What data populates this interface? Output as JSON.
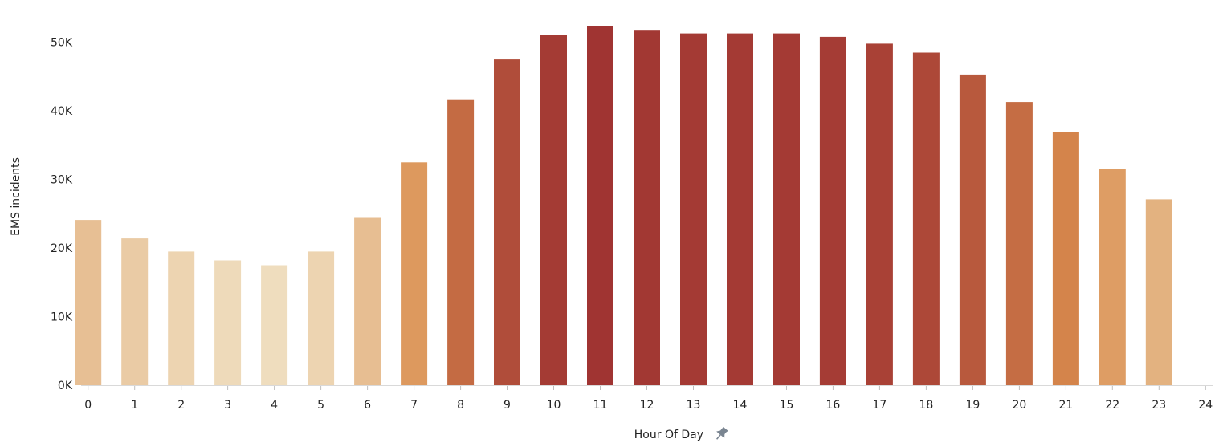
{
  "chart_data": {
    "type": "bar",
    "xlabel": "Hour Of Day",
    "ylabel": "EMS incidents",
    "x_ticks": [
      "0",
      "1",
      "2",
      "3",
      "4",
      "5",
      "6",
      "7",
      "8",
      "9",
      "10",
      "11",
      "12",
      "13",
      "14",
      "15",
      "16",
      "17",
      "18",
      "19",
      "20",
      "21",
      "22",
      "23",
      "24"
    ],
    "categories": [
      0,
      1,
      2,
      3,
      4,
      5,
      6,
      7,
      8,
      9,
      10,
      11,
      12,
      13,
      14,
      15,
      16,
      17,
      18,
      19,
      20,
      21,
      22,
      23
    ],
    "values": [
      24100,
      21400,
      19500,
      18200,
      17500,
      19500,
      24400,
      32500,
      41700,
      47500,
      51100,
      52400,
      51700,
      51300,
      51300,
      51300,
      50800,
      49800,
      48500,
      45300,
      41300,
      36900,
      31600,
      27100
    ],
    "xlim": [
      -0.15,
      24.15
    ],
    "ylim": [
      0,
      55000
    ],
    "y_ticks": [
      0,
      10000,
      20000,
      30000,
      40000,
      50000
    ],
    "y_tick_labels": [
      "0K",
      "10K",
      "20K",
      "30K",
      "40K",
      "50K"
    ],
    "grid": false,
    "legend": "none",
    "color_scale": {
      "low": "#EFDDBE",
      "mid": "#DA8E4E",
      "high": "#A03432"
    },
    "axis_icon": "pin-icon"
  }
}
